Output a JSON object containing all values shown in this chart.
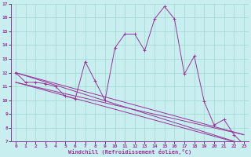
{
  "xlabel": "Windchill (Refroidissement éolien,°C)",
  "bg_color": "#c8eef0",
  "line_color": "#993399",
  "grid_color": "#a0d8d0",
  "xlim": [
    -0.5,
    23.5
  ],
  "ylim": [
    7,
    17
  ],
  "yticks": [
    7,
    8,
    9,
    10,
    11,
    12,
    13,
    14,
    15,
    16,
    17
  ],
  "xticks": [
    0,
    1,
    2,
    3,
    4,
    5,
    6,
    7,
    8,
    9,
    10,
    11,
    12,
    13,
    14,
    15,
    16,
    17,
    18,
    19,
    20,
    21,
    22,
    23
  ],
  "main_line": {
    "x": [
      0,
      1,
      2,
      3,
      4,
      5,
      6,
      7,
      8,
      9,
      10,
      11,
      12,
      13,
      14,
      15,
      16,
      17,
      18,
      19,
      20,
      21,
      22,
      23
    ],
    "y": [
      12.0,
      11.3,
      11.3,
      11.2,
      11.0,
      10.3,
      10.1,
      12.8,
      11.4,
      10.0,
      13.8,
      14.8,
      14.8,
      13.6,
      15.9,
      16.8,
      15.9,
      11.9,
      13.2,
      9.9,
      8.2,
      8.6,
      7.5,
      6.8
    ]
  },
  "trend_lines": [
    {
      "x": [
        0,
        23
      ],
      "y": [
        12.0,
        6.8
      ]
    },
    {
      "x": [
        0,
        23
      ],
      "y": [
        12.0,
        7.5
      ]
    },
    {
      "x": [
        0,
        23
      ],
      "y": [
        11.3,
        6.8
      ]
    },
    {
      "x": [
        0,
        23
      ],
      "y": [
        11.3,
        7.5
      ]
    }
  ]
}
